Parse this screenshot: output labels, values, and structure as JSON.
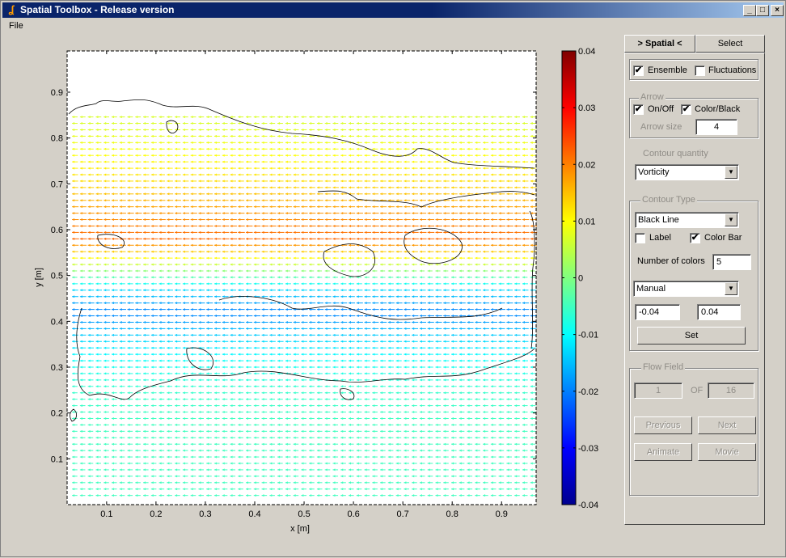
{
  "window": {
    "title": "Spatial Toolbox - Release version",
    "min": "_",
    "max": "□",
    "close": "×"
  },
  "menu": {
    "file": "File"
  },
  "tabs": {
    "spatial": "> Spatial <",
    "select": "Select"
  },
  "options": {
    "ensemble": "Ensemble",
    "fluctuations": "Fluctuations",
    "ensemble_checked": "✔",
    "fluctuations_checked": ""
  },
  "arrow": {
    "title": "Arrow",
    "on_off": "On/Off",
    "on_off_checked": "✔",
    "color_black": "Color/Black",
    "color_black_checked": "✔",
    "size_label": "Arrow size",
    "size_value": "4"
  },
  "contour_quantity": {
    "title": "Contour quantity",
    "value": "Vorticity"
  },
  "contour_type": {
    "title": "Contour Type",
    "type_value": "Black Line",
    "label": "Label",
    "label_checked": "",
    "color_bar": "Color Bar",
    "color_bar_checked": "✔",
    "num_colors_label": "Number of colors",
    "num_colors_value": "5",
    "range_mode": "Manual",
    "min": "-0.04",
    "max": "0.04",
    "set": "Set"
  },
  "flow_field": {
    "title": "Flow Field",
    "current": "1",
    "of": "OF",
    "total": "16",
    "previous": "Previous",
    "next": "Next",
    "animate": "Animate",
    "movie": "Movie"
  },
  "chart_data": {
    "type": "heatmap",
    "title": "",
    "xlabel": "x [m]",
    "ylabel": "y [m]",
    "xlim": [
      0.02,
      0.97
    ],
    "ylim": [
      0.0,
      0.99
    ],
    "xticks": [
      "0.1",
      "0.2",
      "0.3",
      "0.4",
      "0.5",
      "0.6",
      "0.7",
      "0.8",
      "0.9"
    ],
    "yticks": [
      "0.1",
      "0.2",
      "0.3",
      "0.4",
      "0.5",
      "0.6",
      "0.7",
      "0.8",
      "0.9"
    ],
    "colorbar": {
      "range": [
        -0.04,
        0.04
      ],
      "ticks": [
        "0.04",
        "0.03",
        "0.02",
        "0.01",
        "0",
        "-0.01",
        "-0.02",
        "-0.03",
        "-0.04"
      ]
    },
    "vorticity_bands": [
      {
        "y": 0.83,
        "value": 0.007
      },
      {
        "y": 0.76,
        "value": 0.01
      },
      {
        "y": 0.7,
        "value": 0.013
      },
      {
        "y": 0.64,
        "value": 0.018
      },
      {
        "y": 0.58,
        "value": 0.022
      },
      {
        "y": 0.53,
        "value": 0.008
      },
      {
        "y": 0.47,
        "value": -0.013
      },
      {
        "y": 0.42,
        "value": -0.02
      },
      {
        "y": 0.37,
        "value": -0.014
      },
      {
        "y": 0.31,
        "value": -0.009
      },
      {
        "y": 0.25,
        "value": -0.006
      },
      {
        "y": 0.18,
        "value": -0.005
      }
    ],
    "grid": false
  }
}
